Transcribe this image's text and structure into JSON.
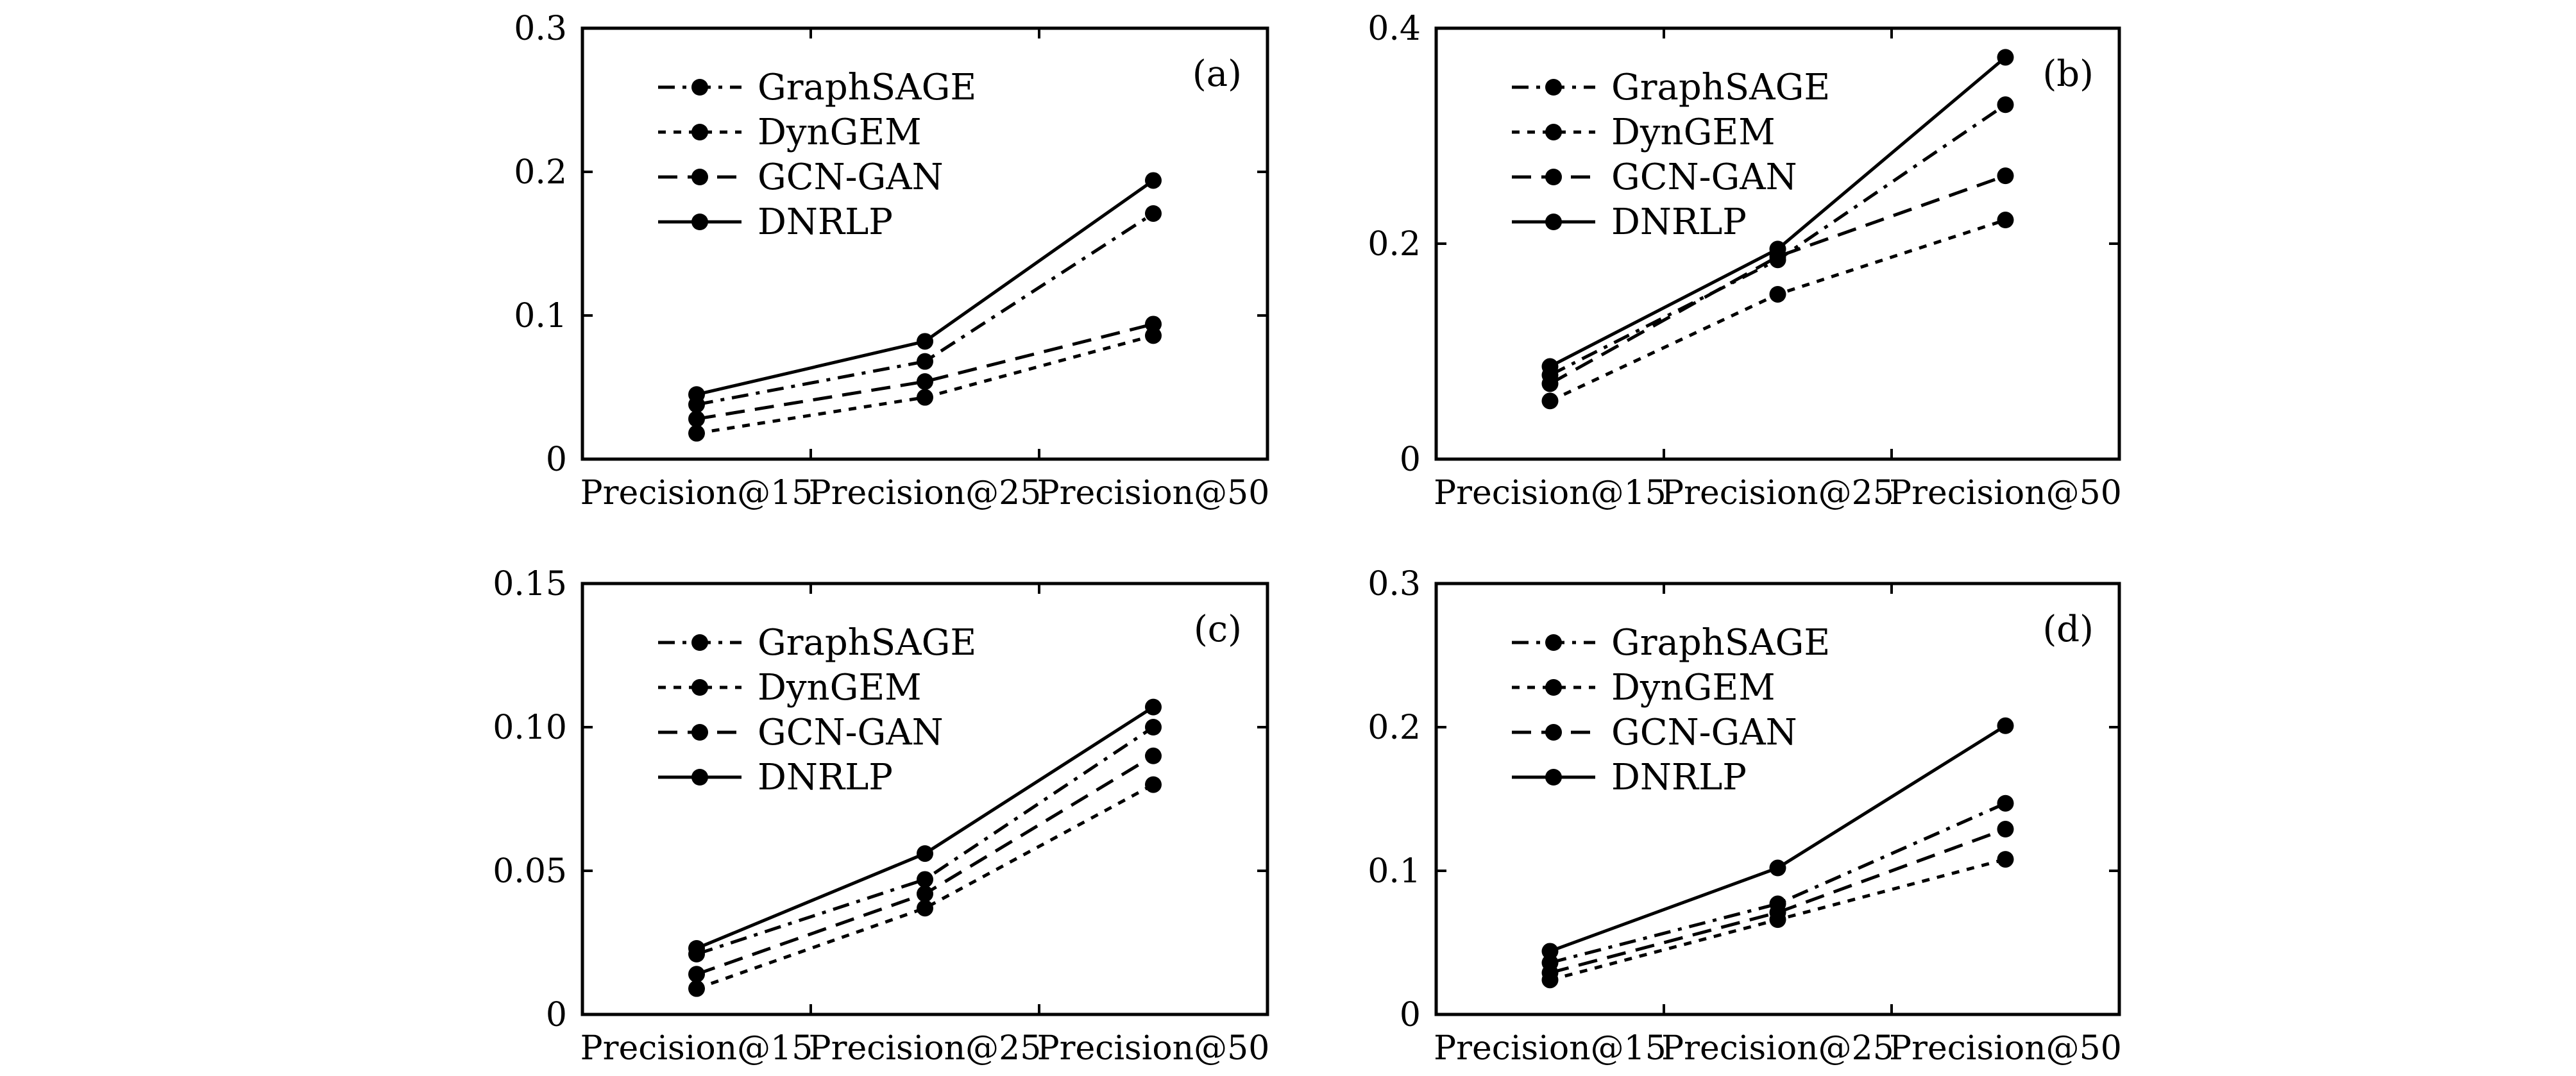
{
  "chart_data": [
    {
      "type": "line",
      "panel_label": "(a)",
      "categories": [
        "Precision@15",
        "Precision@25",
        "Precision@50"
      ],
      "ylim": [
        0,
        0.3
      ],
      "yticks": [
        "0",
        "0.1",
        "0.2",
        "0.3"
      ],
      "yticks_values": [
        0,
        0.1,
        0.2,
        0.3
      ],
      "legend_position": "top-left",
      "series": [
        {
          "name": "GraphSAGE",
          "style": "dash-dot",
          "values": [
            0.038,
            0.068,
            0.171
          ]
        },
        {
          "name": "DynGEM",
          "style": "dotted",
          "values": [
            0.018,
            0.043,
            0.086
          ]
        },
        {
          "name": "GCN-GAN",
          "style": "dashed",
          "values": [
            0.028,
            0.054,
            0.094
          ]
        },
        {
          "name": "DNRLP",
          "style": "solid",
          "values": [
            0.045,
            0.082,
            0.194
          ]
        }
      ]
    },
    {
      "type": "line",
      "panel_label": "(b)",
      "categories": [
        "Precision@15",
        "Precision@25",
        "Precision@50"
      ],
      "ylim": [
        0,
        0.4
      ],
      "yticks": [
        "0",
        "0.2",
        "0.4"
      ],
      "yticks_values": [
        0,
        0.2,
        0.4
      ],
      "legend_position": "top-left",
      "series": [
        {
          "name": "GraphSAGE",
          "style": "dash-dot",
          "values": [
            0.078,
            0.185,
            0.329
          ]
        },
        {
          "name": "DynGEM",
          "style": "dotted",
          "values": [
            0.054,
            0.153,
            0.222
          ]
        },
        {
          "name": "GCN-GAN",
          "style": "dashed",
          "values": [
            0.07,
            0.188,
            0.263
          ]
        },
        {
          "name": "DNRLP",
          "style": "solid",
          "values": [
            0.086,
            0.195,
            0.373
          ]
        }
      ]
    },
    {
      "type": "line",
      "panel_label": "(c)",
      "categories": [
        "Precision@15",
        "Precision@25",
        "Precision@50"
      ],
      "ylim": [
        0,
        0.15
      ],
      "yticks": [
        "0",
        "0.05",
        "0.10",
        "0.15"
      ],
      "yticks_values": [
        0,
        0.05,
        0.1,
        0.15
      ],
      "legend_position": "top-left",
      "series": [
        {
          "name": "GraphSAGE",
          "style": "dash-dot",
          "values": [
            0.021,
            0.047,
            0.1
          ]
        },
        {
          "name": "DynGEM",
          "style": "dotted",
          "values": [
            0.009,
            0.037,
            0.08
          ]
        },
        {
          "name": "GCN-GAN",
          "style": "dashed",
          "values": [
            0.014,
            0.042,
            0.09
          ]
        },
        {
          "name": "DNRLP",
          "style": "solid",
          "values": [
            0.023,
            0.056,
            0.107
          ]
        }
      ]
    },
    {
      "type": "line",
      "panel_label": "(d)",
      "categories": [
        "Precision@15",
        "Precision@25",
        "Precision@50"
      ],
      "ylim": [
        0,
        0.3
      ],
      "yticks": [
        "0",
        "0.1",
        "0.2",
        "0.3"
      ],
      "yticks_values": [
        0,
        0.1,
        0.2,
        0.3
      ],
      "legend_position": "top-left",
      "series": [
        {
          "name": "GraphSAGE",
          "style": "dash-dot",
          "values": [
            0.036,
            0.077,
            0.147
          ]
        },
        {
          "name": "DynGEM",
          "style": "dotted",
          "values": [
            0.024,
            0.066,
            0.108
          ]
        },
        {
          "name": "GCN-GAN",
          "style": "dashed",
          "values": [
            0.029,
            0.071,
            0.129
          ]
        },
        {
          "name": "DNRLP",
          "style": "solid",
          "values": [
            0.044,
            0.102,
            0.201
          ]
        }
      ]
    }
  ]
}
